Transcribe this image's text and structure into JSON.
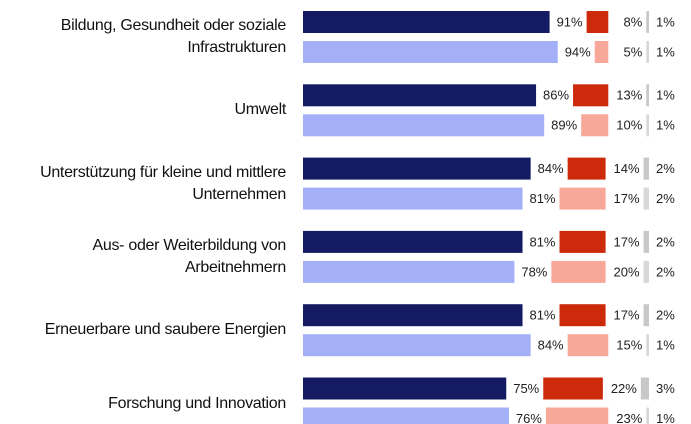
{
  "chart_data": {
    "type": "bar",
    "orientation": "horizontal",
    "stacked": true,
    "categories": [
      "Bildung, Gesundheit oder soziale\nInfrastrukturen",
      "Umwelt",
      "Unterstützung für kleine und mittlere\nUnternehmen",
      "Aus- oder Weiterbildung von\nArbeitnehmern",
      "Erneuerbare und saubere Energien",
      "Forschung und Innovation"
    ],
    "series": [
      {
        "row": 0,
        "color": "#141b63",
        "values": [
          91,
          86,
          84,
          81,
          81,
          75
        ],
        "value_labels": [
          "91%",
          "86%",
          "84%",
          "81%",
          "81%",
          "75%"
        ]
      },
      {
        "row": 0,
        "color": "#cc2a0a",
        "values": [
          8,
          13,
          14,
          17,
          17,
          22
        ],
        "value_labels": [
          "8%",
          "13%",
          "14%",
          "17%",
          "17%",
          "22%"
        ]
      },
      {
        "row": 0,
        "color": "#c8c8c8",
        "values": [
          1,
          1,
          2,
          2,
          2,
          3
        ],
        "value_labels": [
          "1%",
          "1%",
          "2%",
          "2%",
          "2%",
          "3%"
        ]
      },
      {
        "row": 1,
        "color": "#a3b0f8",
        "values": [
          94,
          89,
          81,
          78,
          84,
          76
        ],
        "value_labels": [
          "94%",
          "89%",
          "81%",
          "78%",
          "84%",
          "76%"
        ]
      },
      {
        "row": 1,
        "color": "#f7a898",
        "values": [
          5,
          10,
          17,
          20,
          15,
          23
        ],
        "value_labels": [
          "5%",
          "10%",
          "17%",
          "20%",
          "15%",
          "23%"
        ]
      },
      {
        "row": 1,
        "color": "#d8d8d8",
        "values": [
          1,
          1,
          2,
          2,
          1,
          1
        ],
        "value_labels": [
          "1%",
          "1%",
          "2%",
          "2%",
          "1%",
          "1%"
        ]
      }
    ]
  }
}
